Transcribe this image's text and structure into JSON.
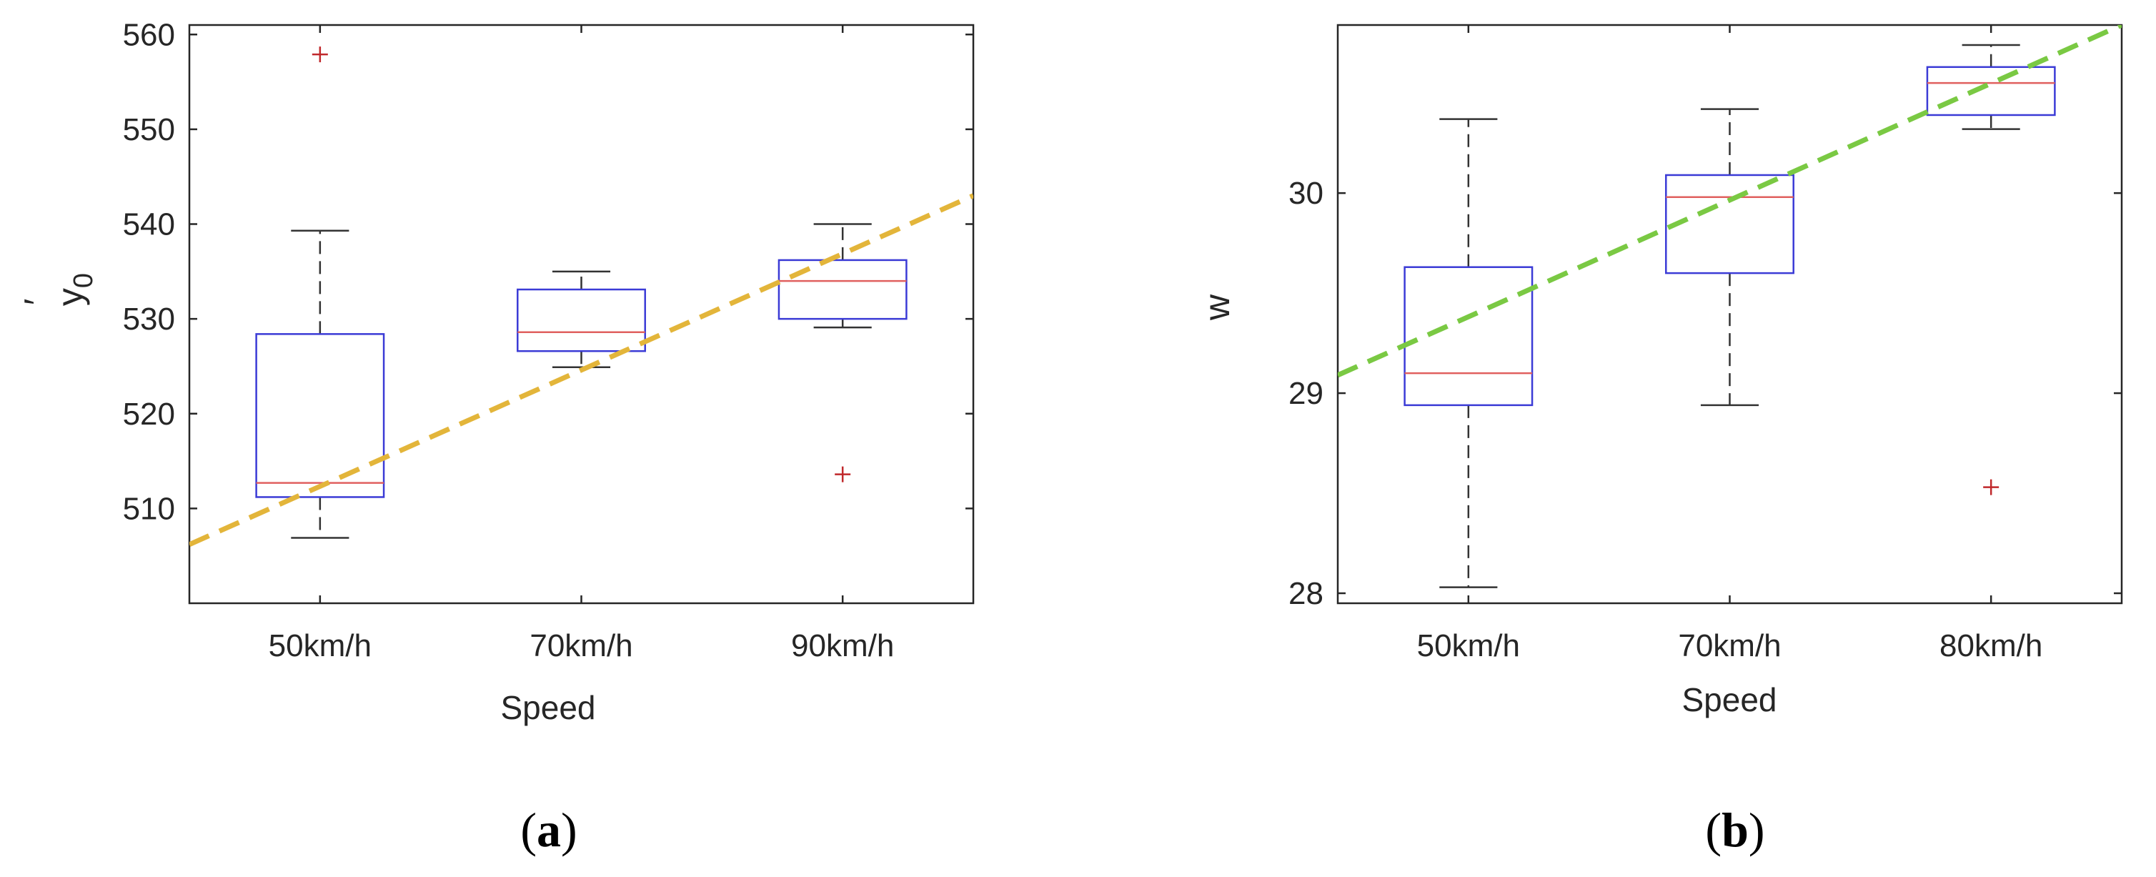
{
  "chart_data": [
    {
      "type": "box",
      "panel_label": {
        "open": "(",
        "letter": "a",
        "close": ")"
      },
      "xlabel": "Speed",
      "ylabel": {
        "base": "y",
        "subscript": "0",
        "prime": "′"
      },
      "categories": [
        "50km/h",
        "70km/h",
        "90km/h"
      ],
      "ylim": [
        500,
        561
      ],
      "yticks": [
        510,
        520,
        530,
        540,
        550,
        560
      ],
      "boxes": [
        {
          "category": "50km/h",
          "whisker_low": 506.9,
          "q1": 511.2,
          "median": 512.7,
          "q3": 528.4,
          "whisker_high": 539.3,
          "outliers": [
            557.9
          ]
        },
        {
          "category": "70km/h",
          "whisker_low": 524.9,
          "q1": 526.6,
          "median": 528.6,
          "q3": 533.1,
          "whisker_high": 535.0,
          "outliers": []
        },
        {
          "category": "90km/h",
          "whisker_low": 529.1,
          "q1": 530.0,
          "median": 534.0,
          "q3": 536.2,
          "whisker_high": 540.0,
          "outliers": [
            513.6
          ]
        }
      ],
      "trend_line": {
        "color": "#E3B53A",
        "from": [
          0.5,
          506.2
        ],
        "to": [
          3.5,
          543.0
        ]
      },
      "colors": {
        "box": "#3b3bd6",
        "median": "#e0605f",
        "whisker": "#333333",
        "outlier": "#c0282b"
      }
    },
    {
      "type": "box",
      "panel_label": {
        "open": "(",
        "letter": "b",
        "close": ")"
      },
      "xlabel": "Speed",
      "ylabel": {
        "base": "w"
      },
      "categories": [
        "50km/h",
        "70km/h",
        "80km/h"
      ],
      "ylim": [
        27.95,
        30.84
      ],
      "yticks": [
        28,
        29,
        30
      ],
      "boxes": [
        {
          "category": "50km/h",
          "whisker_low": 28.03,
          "q1": 28.94,
          "median": 29.1,
          "q3": 29.63,
          "whisker_high": 30.37,
          "outliers": []
        },
        {
          "category": "70km/h",
          "whisker_low": 28.94,
          "q1": 29.6,
          "median": 29.98,
          "q3": 30.09,
          "whisker_high": 30.42,
          "outliers": []
        },
        {
          "category": "80km/h",
          "whisker_low": 30.32,
          "q1": 30.39,
          "median": 30.55,
          "q3": 30.63,
          "whisker_high": 30.74,
          "outliers": [
            28.53
          ]
        }
      ],
      "trend_line": {
        "color": "#7AC943",
        "from": [
          0.5,
          29.09
        ],
        "to": [
          3.5,
          30.84
        ]
      },
      "colors": {
        "box": "#3b3bd6",
        "median": "#e0605f",
        "whisker": "#333333",
        "outlier": "#c0282b"
      }
    }
  ]
}
